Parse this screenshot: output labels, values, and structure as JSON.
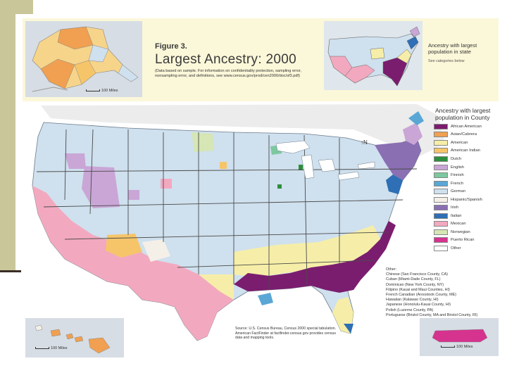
{
  "figure": {
    "number": "Figure 3.",
    "title": "Largest Ancestry: 2000",
    "subtitle": "(Data based on sample. For information on confidentiality protection, sampling error, nonsampling error, and definitions, see www.census.gov/prod/cen2000/doc/sf3.pdf)"
  },
  "state_inset": {
    "legend_title": "Ancestry with largest population in state",
    "legend_note": "See categories below"
  },
  "county_legend": {
    "title": "Ancestry with largest population in County",
    "items": [
      {
        "label": "African American",
        "color": "#7b1d6e"
      },
      {
        "label": "Asian/Cabrera",
        "color": "#f0a050"
      },
      {
        "label": "American",
        "color": "#f6eea8"
      },
      {
        "label": "American Indian",
        "color": "#f6c56a"
      },
      {
        "label": "Dutch",
        "color": "#2e8f3b"
      },
      {
        "label": "English",
        "color": "#c9a6d6"
      },
      {
        "label": "Finnish",
        "color": "#7cc8a0"
      },
      {
        "label": "French",
        "color": "#5aa7d6"
      },
      {
        "label": "German",
        "color": "#cfe0ee"
      },
      {
        "label": "Hispanic/Spanish",
        "color": "#f4f0e8"
      },
      {
        "label": "Irish",
        "color": "#8a6fb3"
      },
      {
        "label": "Italian",
        "color": "#2e6fb5"
      },
      {
        "label": "Mexican",
        "color": "#f2a9bf"
      },
      {
        "label": "Norwegian",
        "color": "#d6e6b4"
      },
      {
        "label": "Puerto Rican",
        "color": "#d6338f"
      },
      {
        "label": "Other",
        "color": "#ffffff"
      }
    ]
  },
  "other_notes": {
    "heading": "Other:",
    "lines": [
      "Chinese (San Francisco County, CA)",
      "Cuban (Miami-Dade County, FL)",
      "Dominican (New York County, NY)",
      "Filipino (Kauai and Maui Counties, HI)",
      "French Canadian (Aroostook County, ME)",
      "Hawaiian (Kalawao County, HI)",
      "Japanese (Honolulu-Kauai County, HI)",
      "Polish (Luzerne County, PA)",
      "Portuguese (Bristol County, MA and Bristol County, RI)"
    ]
  },
  "source_note": "Source: U.S. Census Bureau, Census 2000 special tabulation. American FactFinder at factfinder.census.gov provides census data and mapping tools.",
  "scales": {
    "alaska": "100 Miles",
    "hawaii": "100 Miles",
    "puerto_rico": "100 Miles"
  },
  "colors": {
    "background": "#ffffff",
    "title_band": "#fbf7d9",
    "slide_accent": "#c9c79a",
    "water": "#d7dde4"
  }
}
